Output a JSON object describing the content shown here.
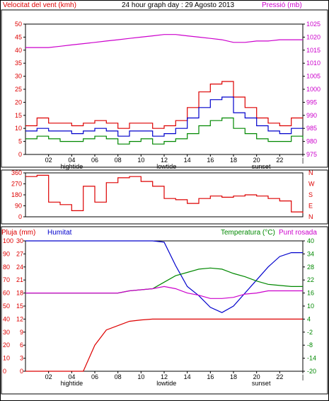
{
  "header": {
    "left_label": "Velocitat del vent (kmh)",
    "center_label": "24 hour graph day : 29 Agosto 2013",
    "right_label": "Pressió (mb)"
  },
  "colors": {
    "red": "#dd0000",
    "blue": "#0000cc",
    "green": "#008800",
    "magenta": "#cc00cc",
    "frame": "#000000"
  },
  "x_ticks": [
    "02",
    "04",
    "06",
    "08",
    "10",
    "12",
    "14",
    "16",
    "18",
    "20",
    "22",
    "|"
  ],
  "x_sublabels": [
    "hightide",
    "lowtide",
    "sunset"
  ],
  "chart_data": [
    {
      "type": "line",
      "title": "",
      "ylabel_left": "Velocitat del vent (kmh)",
      "ylabel_right": "Pressió (mb)",
      "ylim_left": [
        0,
        50
      ],
      "yticks_left": [
        0,
        5,
        10,
        15,
        20,
        25,
        30,
        35,
        40,
        45,
        50
      ],
      "ylim_right": [
        975,
        1025
      ],
      "yticks_right": [
        975,
        980,
        985,
        990,
        995,
        1000,
        1005,
        1010,
        1015,
        1020,
        1025
      ],
      "x_hours": [
        0,
        1,
        2,
        3,
        4,
        5,
        6,
        7,
        8,
        9,
        10,
        11,
        12,
        13,
        14,
        15,
        16,
        17,
        18,
        19,
        20,
        21,
        22,
        23,
        24
      ],
      "series": [
        {
          "name": "gust",
          "axis": "left",
          "values": [
            11,
            14,
            12,
            12,
            11,
            12,
            13,
            12,
            10,
            12,
            12,
            10,
            11,
            13,
            18,
            24,
            27,
            28,
            22,
            18,
            14,
            12,
            11,
            14,
            14
          ]
        },
        {
          "name": "average",
          "axis": "left",
          "values": [
            9,
            10,
            9,
            9,
            8,
            9,
            10,
            9,
            7,
            9,
            9,
            7,
            8,
            10,
            14,
            18,
            21,
            22,
            16,
            14,
            11,
            9,
            8,
            10,
            10
          ]
        },
        {
          "name": "wind_min",
          "axis": "left",
          "values": [
            6,
            7,
            6,
            5,
            5,
            6,
            7,
            6,
            4,
            5,
            6,
            4,
            5,
            6,
            8,
            11,
            13,
            14,
            10,
            8,
            6,
            5,
            5,
            7,
            6
          ]
        },
        {
          "name": "pressure",
          "axis": "right",
          "values": [
            1016,
            1016,
            1016,
            1016.5,
            1017,
            1017.5,
            1018,
            1018.5,
            1019,
            1019.5,
            1020,
            1020.5,
            1021,
            1021,
            1020.5,
            1020,
            1019.5,
            1019,
            1018,
            1018,
            1018.5,
            1018.5,
            1019,
            1019,
            1019
          ]
        }
      ]
    },
    {
      "type": "line",
      "ylabel_left": "",
      "ylim_left": [
        0,
        360
      ],
      "yticks_left": [
        0,
        90,
        180,
        270,
        360
      ],
      "yticks_right": [
        "N",
        "W",
        "S",
        "E",
        "N"
      ],
      "x_hours": [
        0,
        1,
        2,
        3,
        4,
        5,
        6,
        7,
        8,
        9,
        10,
        11,
        12,
        13,
        14,
        15,
        16,
        17,
        18,
        19,
        20,
        21,
        22,
        23,
        24
      ],
      "series": [
        {
          "name": "direction",
          "axis": "left",
          "values": [
            330,
            340,
            120,
            100,
            50,
            250,
            120,
            280,
            320,
            330,
            290,
            250,
            150,
            140,
            110,
            150,
            170,
            160,
            170,
            180,
            170,
            150,
            130,
            40,
            30
          ]
        }
      ]
    },
    {
      "type": "line",
      "ylabel_left": "Pluja (mm)",
      "label_humidity": "Humitat",
      "ylabel_right": "Temperatura (°C)",
      "label_dewpoint": "Punt rosada",
      "ylim_left": [
        0,
        100
      ],
      "yticks_left": [
        0,
        10,
        20,
        30,
        40,
        50,
        60,
        70,
        80,
        90,
        100
      ],
      "rain_ticks": [
        0,
        3,
        6,
        9,
        12,
        15,
        18,
        21,
        24,
        27,
        30
      ],
      "ylim_right": [
        -20,
        40
      ],
      "yticks_right": [
        -20,
        -14,
        -8,
        -2,
        4,
        10,
        16,
        22,
        28,
        34,
        40
      ],
      "x_hours": [
        0,
        1,
        2,
        3,
        4,
        5,
        6,
        7,
        8,
        9,
        10,
        11,
        12,
        13,
        14,
        15,
        16,
        17,
        18,
        19,
        20,
        21,
        22,
        23,
        24
      ],
      "series": [
        {
          "name": "humidity",
          "axis": "left",
          "values": [
            100,
            100,
            100,
            100,
            100,
            100,
            100,
            100,
            100,
            100,
            100,
            100,
            99,
            81,
            65,
            58,
            49,
            45,
            50,
            60,
            70,
            80,
            88,
            91,
            91
          ]
        },
        {
          "name": "rain",
          "axis": "rain",
          "values": [
            0,
            0,
            0,
            0,
            0,
            0,
            6,
            9.5,
            10.5,
            11.5,
            11.8,
            12,
            12,
            12,
            12,
            12,
            12,
            12,
            12,
            12,
            12,
            12,
            12,
            12,
            12
          ]
        },
        {
          "name": "temperature",
          "axis": "right",
          "values": [
            16,
            16,
            16,
            16,
            16,
            16,
            16,
            16,
            16,
            17,
            17.5,
            18,
            21,
            24,
            25.5,
            27,
            27.5,
            27,
            25,
            23.5,
            21.5,
            20,
            19.5,
            19,
            19
          ]
        },
        {
          "name": "dewpoint",
          "axis": "right",
          "values": [
            16,
            16,
            16,
            16,
            16,
            16,
            16,
            16,
            16,
            17,
            17.5,
            18,
            19,
            18,
            16,
            15,
            13.5,
            13.5,
            14,
            15.5,
            16,
            17,
            17,
            17,
            17
          ]
        }
      ]
    }
  ]
}
